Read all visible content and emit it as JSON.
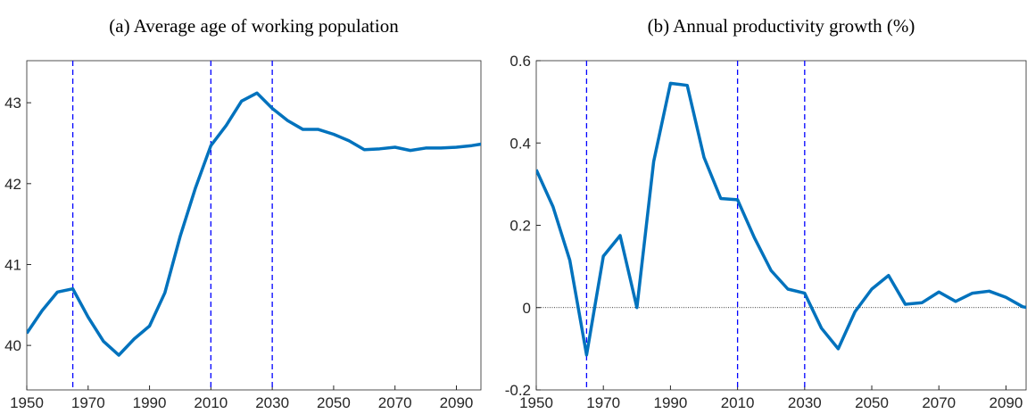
{
  "chart_data": [
    {
      "type": "line",
      "title": "(a) Average age of working population",
      "x": [
        1950,
        1955,
        1960,
        1965,
        1970,
        1975,
        1980,
        1985,
        1990,
        1995,
        2000,
        2005,
        2010,
        2015,
        2020,
        2025,
        2030,
        2035,
        2040,
        2045,
        2050,
        2055,
        2060,
        2065,
        2070,
        2075,
        2080,
        2085,
        2090,
        2095,
        2100
      ],
      "series": [
        {
          "color": "#0072bd",
          "values": [
            40.15,
            40.43,
            40.66,
            40.7,
            40.35,
            40.05,
            39.88,
            40.08,
            40.24,
            40.65,
            41.35,
            41.95,
            42.47,
            42.72,
            43.02,
            43.12,
            42.93,
            42.78,
            42.67,
            42.67,
            42.61,
            42.53,
            42.42,
            42.43,
            42.45,
            42.41,
            42.44,
            42.44,
            42.45,
            42.47,
            42.5
          ]
        }
      ],
      "xlim": [
        1950,
        2098
      ],
      "xticks": [
        1950,
        1970,
        1990,
        2010,
        2030,
        2050,
        2070,
        2090
      ],
      "ylim": [
        39.45,
        43.52
      ],
      "yticks": [
        40,
        41,
        42,
        43
      ],
      "vlines": [
        1965,
        2010,
        2030
      ],
      "vline_color": "#0000ff"
    },
    {
      "type": "line",
      "title": "(b) Annual productivity growth (%)",
      "x": [
        1950,
        1955,
        1960,
        1965,
        1970,
        1975,
        1980,
        1985,
        1990,
        1995,
        2000,
        2005,
        2010,
        2015,
        2020,
        2025,
        2030,
        2035,
        2040,
        2045,
        2050,
        2055,
        2060,
        2065,
        2070,
        2075,
        2080,
        2085,
        2090,
        2095,
        2100
      ],
      "series": [
        {
          "color": "#0072bd",
          "values": [
            0.335,
            0.245,
            0.115,
            -0.115,
            0.125,
            0.175,
            0.0,
            0.355,
            0.545,
            0.54,
            0.365,
            0.265,
            0.262,
            0.17,
            0.09,
            0.045,
            0.035,
            -0.05,
            -0.1,
            -0.01,
            0.045,
            0.078,
            0.008,
            0.012,
            0.038,
            0.015,
            0.035,
            0.04,
            0.025,
            0.002,
            -0.005
          ]
        }
      ],
      "xlim": [
        1950,
        2096
      ],
      "xticks": [
        1950,
        1970,
        1990,
        2010,
        2030,
        2050,
        2070,
        2090
      ],
      "ylim": [
        -0.2,
        0.6
      ],
      "yticks": [
        -0.2,
        0,
        0.2,
        0.4,
        0.6
      ],
      "vlines": [
        1965,
        2010,
        2030
      ],
      "vline_color": "#0000ff",
      "hlines": [
        0
      ]
    }
  ]
}
